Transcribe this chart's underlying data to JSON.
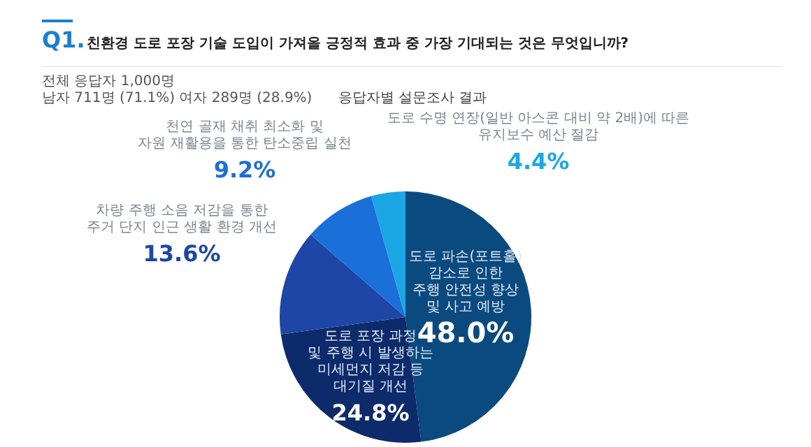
{
  "chart_data": {
    "type": "pie",
    "title": "친환경 도로 포장 기술 도입이 가져올 긍정적 효과 중 가장 기대되는 것은 무엇입니까?",
    "subtitle": "응답자별 설문조사 결과",
    "annotations": [
      "Q1.",
      "전체 응답자 1,000명",
      "남자 711명 (71.1%) 여자 289명 (28.9%)"
    ],
    "categories": [
      "도로 파손(포트홀)\n감소로 인한\n주행 안전성 향상\n및 사고 예방",
      "도로 포장 과정\n및 주행 시 발생하는\n미세먼지 저감 등\n대기질 개선",
      "차량 주행 소음 저감을 통한\n주거 단지 인근 생활 환경 개선",
      "천연 골재 채취 최소화 및\n자원 재활용을 통한 탄소중립 실천",
      "도로 수명 연장(일반 아스콘 대비 약 2배)에 따른\n유지보수 예산 절감"
    ],
    "values": [
      48.0,
      24.8,
      13.6,
      9.2,
      4.4
    ],
    "value_labels": [
      "48.0%",
      "24.8%",
      "13.6%",
      "9.2%",
      "4.4%"
    ],
    "colors": [
      "#0b4a7e",
      "#0d2a6b",
      "#1d46a6",
      "#1a70d8",
      "#1ba6e6"
    ],
    "legend": false
  }
}
